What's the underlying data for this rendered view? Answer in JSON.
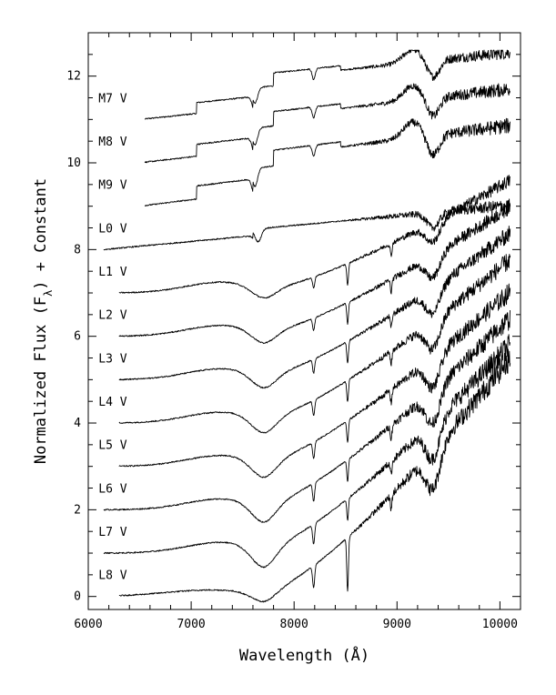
{
  "chart_data": {
    "type": "line",
    "xlabel": "Wavelength (Å)",
    "ylabel_main": "Normalized Flux (F",
    "ylabel_sub": "λ",
    "ylabel_tail": ") + Constant",
    "xlim": [
      6000,
      10200
    ],
    "ylim": [
      -0.3,
      13.0
    ],
    "x_ticks": [
      6000,
      7000,
      8000,
      9000,
      10000
    ],
    "y_ticks": [
      0,
      2,
      4,
      6,
      8,
      10,
      12
    ],
    "grid": false,
    "series": [
      {
        "name": "M7 V",
        "offset": 11,
        "x_start": 6550,
        "label_x": 6100,
        "label_y": 11.4,
        "shape": "M",
        "scale": 1.0
      },
      {
        "name": "M8 V",
        "offset": 10,
        "x_start": 6550,
        "label_x": 6100,
        "label_y": 10.4,
        "shape": "M",
        "scale": 1.1
      },
      {
        "name": "M9 V",
        "offset": 9,
        "x_start": 6550,
        "label_x": 6100,
        "label_y": 9.4,
        "shape": "M",
        "scale": 1.2
      },
      {
        "name": "L0 V",
        "offset": 8,
        "x_start": 6150,
        "label_x": 6100,
        "label_y": 8.4,
        "shape": "L0",
        "scale": 1.0
      },
      {
        "name": "L1 V",
        "offset": 7,
        "x_start": 6300,
        "label_x": 6100,
        "label_y": 7.4,
        "shape": "L",
        "scale": 1.0
      },
      {
        "name": "L2 V",
        "offset": 6,
        "x_start": 6300,
        "label_x": 6100,
        "label_y": 6.4,
        "shape": "L",
        "scale": 1.15
      },
      {
        "name": "L3 V",
        "offset": 5,
        "x_start": 6300,
        "label_x": 6100,
        "label_y": 5.4,
        "shape": "L",
        "scale": 1.3
      },
      {
        "name": "L4 V",
        "offset": 4,
        "x_start": 6300,
        "label_x": 6100,
        "label_y": 4.4,
        "shape": "L",
        "scale": 1.45
      },
      {
        "name": "L5 V",
        "offset": 3,
        "x_start": 6300,
        "label_x": 6100,
        "label_y": 3.4,
        "shape": "L",
        "scale": 1.55
      },
      {
        "name": "L6 V",
        "offset": 2,
        "x_start": 6150,
        "label_x": 6100,
        "label_y": 2.4,
        "shape": "L",
        "scale": 1.7
      },
      {
        "name": "L7 V",
        "offset": 1,
        "x_start": 6150,
        "label_x": 6100,
        "label_y": 1.4,
        "shape": "L",
        "scale": 1.85
      },
      {
        "name": "L8 V",
        "offset": 0,
        "x_start": 6300,
        "label_x": 6100,
        "label_y": 0.4,
        "shape": "L8",
        "scale": 2.0
      }
    ],
    "x_end": 10100
  }
}
